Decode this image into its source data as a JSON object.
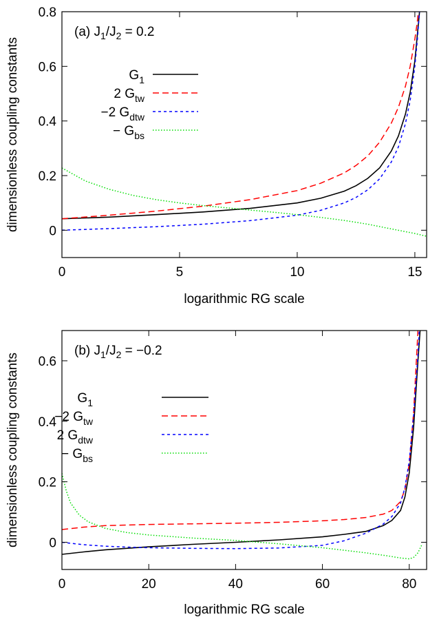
{
  "chart_data": [
    {
      "type": "line",
      "panel_label": "(a) J",
      "panel_label_sub1": "1",
      "panel_label_mid": "/J",
      "panel_label_sub2": "2",
      "panel_label_end": " = 0.2",
      "xlabel": "logarithmic RG scale",
      "ylabel": "dimensionless coupling constants",
      "xlim": [
        0,
        15.5
      ],
      "ylim": [
        -0.1,
        0.8
      ],
      "xticks": [
        0,
        5,
        10,
        15
      ],
      "xtick_labels": [
        "0",
        "5",
        "10",
        "15"
      ],
      "yticks": [
        0,
        0.2,
        0.4,
        0.6,
        0.8
      ],
      "ytick_labels": [
        "0",
        "0.2",
        "0.4",
        "0.6",
        "0.8"
      ],
      "legend_position": "upper-left",
      "series": [
        {
          "legend_main": "G",
          "legend_sub": "1",
          "color": "#000000",
          "dash": "solid",
          "x": [
            0,
            2,
            4,
            6,
            8,
            10,
            11,
            12,
            12.5,
            13,
            13.5,
            14,
            14.3,
            14.6,
            14.8,
            15.0,
            15.1,
            15.2
          ],
          "y": [
            0.042,
            0.048,
            0.057,
            0.067,
            0.08,
            0.1,
            0.117,
            0.143,
            0.163,
            0.19,
            0.228,
            0.29,
            0.345,
            0.425,
            0.505,
            0.62,
            0.71,
            0.8
          ]
        },
        {
          "legend_main": "2 G",
          "legend_sub": "tw",
          "color": "#ff0000",
          "dash": "long",
          "x": [
            0,
            2,
            4,
            6,
            8,
            10,
            11,
            12,
            12.5,
            13,
            13.5,
            14,
            14.3,
            14.6,
            14.8,
            15.0,
            15.1,
            15.15
          ],
          "y": [
            0.042,
            0.055,
            0.07,
            0.088,
            0.112,
            0.145,
            0.172,
            0.21,
            0.237,
            0.272,
            0.322,
            0.392,
            0.45,
            0.527,
            0.6,
            0.7,
            0.76,
            0.8
          ]
        },
        {
          "legend_main": "−2 G",
          "legend_sub": "dtw",
          "color": "#0000ff",
          "dash": "short",
          "x": [
            0,
            2,
            4,
            6,
            8,
            10,
            11,
            12,
            12.5,
            13,
            13.5,
            14,
            14.3,
            14.6,
            14.8,
            15.0,
            15.1,
            15.2
          ],
          "y": [
            0.0,
            0.006,
            0.013,
            0.022,
            0.035,
            0.055,
            0.073,
            0.1,
            0.12,
            0.148,
            0.188,
            0.25,
            0.305,
            0.39,
            0.475,
            0.6,
            0.69,
            0.8
          ]
        },
        {
          "legend_main": "− G",
          "legend_sub": "bs",
          "color": "#00dd00",
          "dash": "dot",
          "x": [
            0,
            1,
            2,
            3,
            4,
            5,
            6,
            7,
            8,
            9,
            10,
            11,
            12,
            13,
            14,
            15,
            15.5
          ],
          "y": [
            0.228,
            0.18,
            0.15,
            0.128,
            0.112,
            0.1,
            0.09,
            0.082,
            0.074,
            0.066,
            0.057,
            0.047,
            0.036,
            0.022,
            0.005,
            -0.012,
            -0.022
          ]
        }
      ]
    },
    {
      "type": "line",
      "panel_label": "(b) J",
      "panel_label_sub1": "1",
      "panel_label_mid": "/J",
      "panel_label_sub2": "2",
      "panel_label_end": " = −0.2",
      "xlabel": "logarithmic RG scale",
      "ylabel": "dimensionless coupling constants",
      "xlim": [
        0,
        84
      ],
      "ylim": [
        -0.09,
        0.7
      ],
      "xticks": [
        0,
        20,
        40,
        60,
        80
      ],
      "xtick_labels": [
        "0",
        "20",
        "40",
        "60",
        "80"
      ],
      "yticks": [
        0,
        0.2,
        0.4,
        0.6
      ],
      "ytick_labels": [
        "0",
        "0.2",
        "0.4",
        "0.6"
      ],
      "legend_position": "upper-left",
      "series": [
        {
          "legend_main": "G",
          "legend_sub": "1",
          "color": "#000000",
          "dash": "solid",
          "x": [
            0,
            5,
            10,
            20,
            30,
            40,
            50,
            60,
            65,
            70,
            74,
            76,
            78,
            79,
            80,
            81,
            82,
            82.5
          ],
          "y": [
            -0.04,
            -0.032,
            -0.025,
            -0.015,
            -0.007,
            0.0,
            0.008,
            0.018,
            0.026,
            0.036,
            0.055,
            0.072,
            0.105,
            0.15,
            0.23,
            0.38,
            0.6,
            0.7
          ]
        },
        {
          "legend_main": "−2 G",
          "legend_sub": "tw",
          "color": "#ff0000",
          "dash": "long",
          "x": [
            0,
            5,
            10,
            20,
            30,
            40,
            50,
            60,
            65,
            70,
            74,
            76,
            78,
            79,
            80,
            81,
            82
          ],
          "y": [
            0.042,
            0.05,
            0.055,
            0.059,
            0.061,
            0.063,
            0.066,
            0.071,
            0.075,
            0.082,
            0.093,
            0.105,
            0.135,
            0.175,
            0.26,
            0.43,
            0.7
          ]
        },
        {
          "legend_main": "2 G",
          "legend_sub": "dtw",
          "color": "#0000ff",
          "dash": "short",
          "x": [
            0,
            5,
            10,
            15,
            20,
            30,
            40,
            50,
            60,
            65,
            70,
            74,
            76,
            78,
            79,
            80,
            81,
            82,
            82.3
          ],
          "y": [
            0.0,
            -0.008,
            -0.013,
            -0.016,
            -0.018,
            -0.02,
            -0.021,
            -0.019,
            -0.01,
            0.005,
            0.03,
            0.06,
            0.085,
            0.13,
            0.18,
            0.27,
            0.42,
            0.62,
            0.7
          ]
        },
        {
          "legend_main": "− G",
          "legend_sub": "bs",
          "color": "#00dd00",
          "dash": "dot",
          "x": [
            0,
            1,
            2,
            4,
            6,
            10,
            15,
            20,
            30,
            40,
            50,
            60,
            70,
            75,
            78,
            80,
            81,
            82,
            83
          ],
          "y": [
            0.228,
            0.17,
            0.13,
            0.09,
            0.068,
            0.046,
            0.032,
            0.024,
            0.014,
            0.006,
            -0.005,
            -0.018,
            -0.035,
            -0.045,
            -0.052,
            -0.055,
            -0.05,
            -0.035,
            -0.005
          ]
        }
      ]
    }
  ]
}
